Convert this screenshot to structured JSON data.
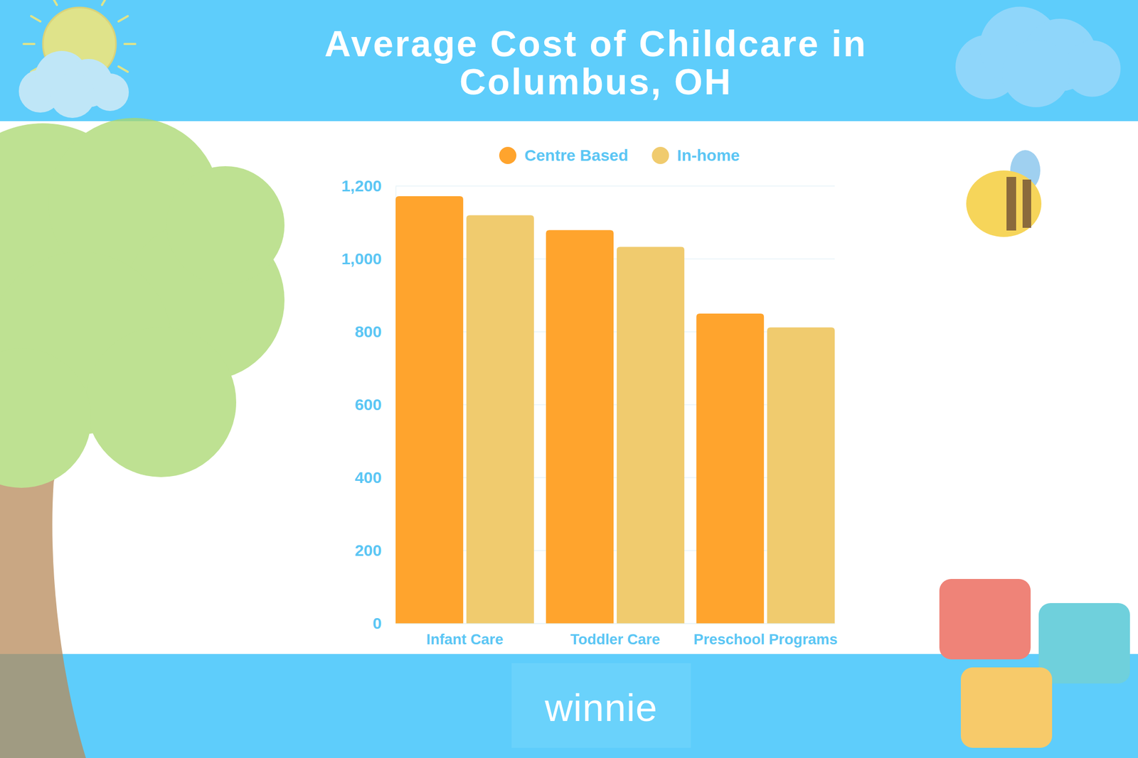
{
  "chart_data": {
    "type": "bar",
    "title": "Average Cost of Childcare in Columbus, OH",
    "categories": [
      "Infant Care",
      "Toddler Care",
      "Preschool Programs"
    ],
    "series": [
      {
        "name": "Centre Based",
        "color": "#ffa42d",
        "values": [
          1172,
          1079,
          850
        ]
      },
      {
        "name": "In-home",
        "color": "#f0cb6e",
        "values": [
          1120,
          1033,
          812
        ]
      }
    ],
    "ylim": [
      0,
      1200
    ],
    "yticks": [
      0,
      200,
      400,
      600,
      800,
      {
        "value": 1000,
        "label": "1,000"
      },
      {
        "value": 1200,
        "label": "1,200"
      }
    ],
    "grid": true,
    "legend": "top"
  },
  "footer": {
    "logo": "winnie"
  }
}
